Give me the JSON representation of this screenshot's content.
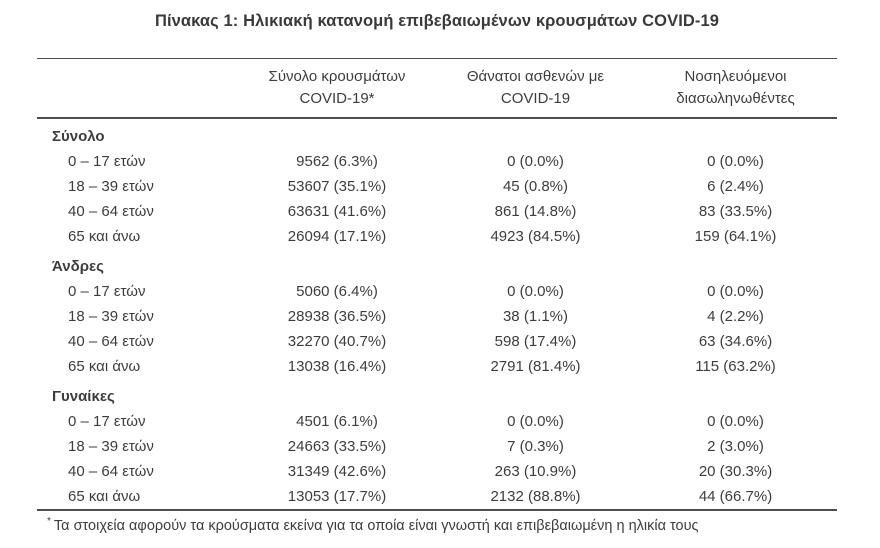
{
  "title": "Πίνακας 1: Ηλικιακή κατανομή επιβεβαιωμένων κρουσμάτων COVID-19",
  "table": {
    "columns": [
      {
        "line1": "Σύνολο κρουσμάτων",
        "line2": "COVID-19*"
      },
      {
        "line1": "Θάνατοι ασθενών με",
        "line2": "COVID-19"
      },
      {
        "line1": "Νοσηλευόμενοι",
        "line2": "διασωληνωθέντες"
      }
    ],
    "sections": [
      {
        "label": "Σύνολο",
        "rows": [
          {
            "age": "0 – 17 ετών",
            "cases": "9562 (6.3%)",
            "deaths": "0 (0.0%)",
            "intubated": "0 (0.0%)"
          },
          {
            "age": "18 – 39 ετών",
            "cases": "53607 (35.1%)",
            "deaths": "45 (0.8%)",
            "intubated": "6 (2.4%)"
          },
          {
            "age": "40 – 64 ετών",
            "cases": "63631 (41.6%)",
            "deaths": "861 (14.8%)",
            "intubated": "83 (33.5%)"
          },
          {
            "age": "65 και άνω",
            "cases": "26094 (17.1%)",
            "deaths": "4923 (84.5%)",
            "intubated": "159 (64.1%)"
          }
        ]
      },
      {
        "label": "Άνδρες",
        "rows": [
          {
            "age": "0 – 17 ετών",
            "cases": "5060 (6.4%)",
            "deaths": "0 (0.0%)",
            "intubated": "0 (0.0%)"
          },
          {
            "age": "18 – 39 ετών",
            "cases": "28938 (36.5%)",
            "deaths": "38 (1.1%)",
            "intubated": "4 (2.2%)"
          },
          {
            "age": "40 – 64 ετών",
            "cases": "32270 (40.7%)",
            "deaths": "598 (17.4%)",
            "intubated": "63 (34.6%)"
          },
          {
            "age": "65 και άνω",
            "cases": "13038 (16.4%)",
            "deaths": "2791 (81.4%)",
            "intubated": "115 (63.2%)"
          }
        ]
      },
      {
        "label": "Γυναίκες",
        "rows": [
          {
            "age": "0 – 17 ετών",
            "cases": "4501 (6.1%)",
            "deaths": "0 (0.0%)",
            "intubated": "0 (0.0%)"
          },
          {
            "age": "18 – 39 ετών",
            "cases": "24663 (33.5%)",
            "deaths": "7 (0.3%)",
            "intubated": "2 (3.0%)"
          },
          {
            "age": "40 – 64 ετών",
            "cases": "31349 (42.6%)",
            "deaths": "263 (10.9%)",
            "intubated": "20 (30.3%)"
          },
          {
            "age": "65 και άνω",
            "cases": "13053 (17.7%)",
            "deaths": "2132 (88.8%)",
            "intubated": "44 (66.7%)"
          }
        ]
      }
    ]
  },
  "footnote": {
    "marker": "*",
    "text": "Τα στοιχεία αφορούν τα κρούσματα εκείνα για τα οποία είναι γνωστή και επιβεβαιωμένη η ηλικία τους"
  },
  "colors": {
    "text": "#3d3d3d",
    "rule": "#4d4d4d",
    "background": "#ffffff"
  }
}
